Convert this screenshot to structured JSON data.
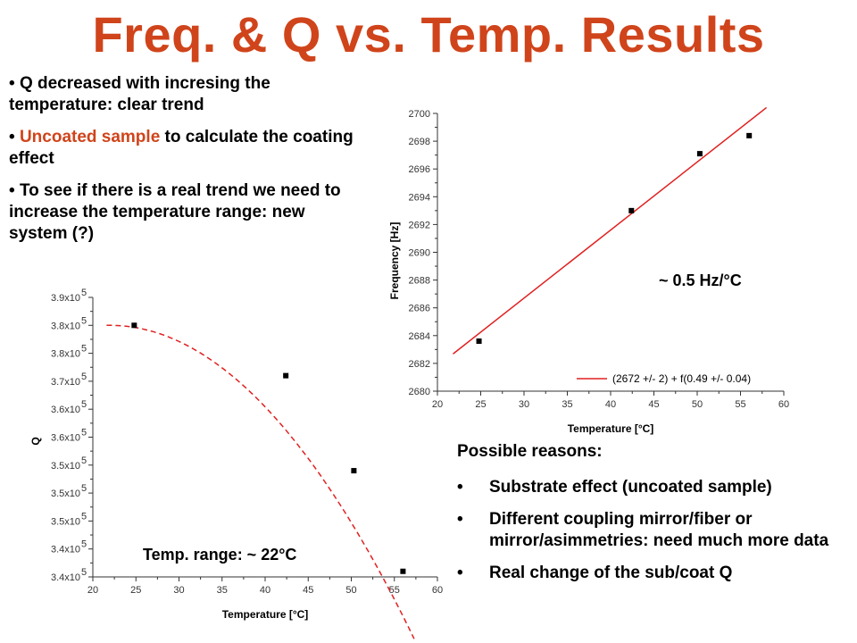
{
  "title": "Freq. & Q vs. Temp. Results",
  "bullets": [
    {
      "text": "Q decreased with incresing the temperature: clear trend"
    },
    {
      "accent": "Uncoated sample",
      "text": " to calculate the coating effect"
    },
    {
      "text": "To see if there is a real trend we need to increase the temperature range: new system (?)"
    }
  ],
  "bullet_symbol": "•",
  "reasons": {
    "heading": "Possible reasons:",
    "items": [
      "Substrate effect (uncoated sample)",
      "Different coupling mirror/fiber or mirror/asimmetries: need much more data",
      "Real change of the sub/coat Q"
    ]
  },
  "colors": {
    "title": "#d0441b",
    "accent": "#d0441b",
    "fit_line": "#e02020",
    "points": "#000000"
  },
  "chart_data": [
    {
      "type": "scatter",
      "xlabel": "Temperature [°C]",
      "ylabel": "Frequency [Hz]",
      "xlim": [
        20,
        60
      ],
      "ylim": [
        2680,
        2700
      ],
      "x_ticks": [
        "20",
        "25",
        "30",
        "35",
        "40",
        "45",
        "50",
        "55",
        "60"
      ],
      "y_ticks": [
        "2680",
        "2682",
        "2684",
        "2686",
        "2688",
        "2690",
        "2692",
        "2694",
        "2696",
        "2698",
        "2700"
      ],
      "points": [
        {
          "x": 24.8,
          "y": 2683.6
        },
        {
          "x": 42.4,
          "y": 2693.0
        },
        {
          "x": 50.3,
          "y": 2697.1
        },
        {
          "x": 56.0,
          "y": 2698.4
        }
      ],
      "fit": {
        "type": "linear",
        "intercept": 2672,
        "slope": 0.49,
        "x_range": [
          21.8,
          58.0
        ]
      },
      "legend": "(2672 +/- 2) + f(0.49 +/- 0.04)",
      "legend_position": "bottom-right",
      "annotation": "~ 0.5 Hz/°C"
    },
    {
      "type": "scatter",
      "xlabel": "Temperature [°C]",
      "ylabel": "Q",
      "xlim": [
        20,
        60
      ],
      "ylim": [
        3.4,
        3.9
      ],
      "x_ticks": [
        "20",
        "25",
        "30",
        "35",
        "40",
        "45",
        "50",
        "55",
        "60"
      ],
      "y_ticks": [
        {
          "mant": "3.4x10",
          "exp": "5"
        },
        {
          "mant": "3.4x10",
          "exp": "5"
        },
        {
          "mant": "3.5x10",
          "exp": "5"
        },
        {
          "mant": "3.5x10",
          "exp": "5"
        },
        {
          "mant": "3.5x10",
          "exp": "5"
        },
        {
          "mant": "3.6x10",
          "exp": "5"
        },
        {
          "mant": "3.6x10",
          "exp": "5"
        },
        {
          "mant": "3.7x10",
          "exp": "5"
        },
        {
          "mant": "3.8x10",
          "exp": "5"
        },
        {
          "mant": "3.8x10",
          "exp": "5"
        },
        {
          "mant": "3.9x10",
          "exp": "5"
        }
      ],
      "points": [
        {
          "x": 24.8,
          "y": 3.85
        },
        {
          "x": 42.4,
          "y": 3.76
        },
        {
          "x": 50.3,
          "y": 3.59
        },
        {
          "x": 56.0,
          "y": 3.41
        }
      ],
      "fit": {
        "type": "quadratic",
        "vertex_x": 22,
        "vertex_y": 3.85,
        "a": -0.00045,
        "x_range": [
          21.6,
          57.3
        ],
        "style": "dashed"
      },
      "annotation": "Temp. range: ~ 22°C"
    }
  ]
}
